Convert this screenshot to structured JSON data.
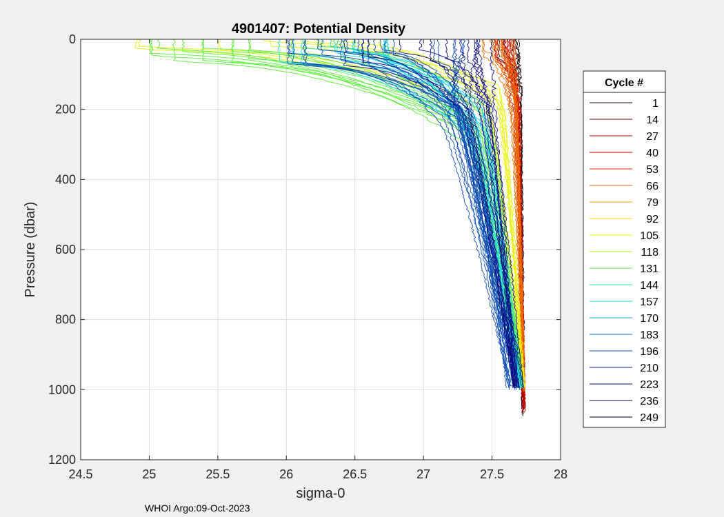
{
  "chart_data": {
    "type": "line",
    "title": "4901407: Potential Density",
    "xlabel": "sigma-0",
    "ylabel": "Pressure (dbar)",
    "xlim": [
      24.5,
      28
    ],
    "ylim": [
      0,
      1200
    ],
    "y_reversed": true,
    "grid": true,
    "x_ticks": [
      24.5,
      25,
      25.5,
      26,
      26.5,
      27,
      27.5,
      28
    ],
    "x_tick_labels": [
      "24.5",
      "25",
      "25.5",
      "26",
      "26.5",
      "27",
      "27.5",
      "28"
    ],
    "y_ticks": [
      0,
      200,
      400,
      600,
      800,
      1000,
      1200
    ],
    "y_tick_labels": [
      "0",
      "200",
      "400",
      "600",
      "800",
      "1000",
      "1200"
    ],
    "legend": {
      "title": "Cycle #",
      "position": "right-outside",
      "entries": [
        {
          "label": "1",
          "color": "#1a0000"
        },
        {
          "label": "14",
          "color": "#6b0000"
        },
        {
          "label": "27",
          "color": "#9c0000"
        },
        {
          "label": "40",
          "color": "#c40000"
        },
        {
          "label": "53",
          "color": "#e62b00"
        },
        {
          "label": "66",
          "color": "#f06a00"
        },
        {
          "label": "79",
          "color": "#f09a00"
        },
        {
          "label": "92",
          "color": "#f5d400"
        },
        {
          "label": "105",
          "color": "#e8f000"
        },
        {
          "label": "118",
          "color": "#a8f000"
        },
        {
          "label": "131",
          "color": "#55ee33"
        },
        {
          "label": "144",
          "color": "#22e5a0"
        },
        {
          "label": "157",
          "color": "#11d8e8"
        },
        {
          "label": "170",
          "color": "#0fb0e0"
        },
        {
          "label": "183",
          "color": "#0a78c8"
        },
        {
          "label": "196",
          "color": "#0a4ab0"
        },
        {
          "label": "210",
          "color": "#0a1fa0"
        },
        {
          "label": "223",
          "color": "#0a0a80"
        },
        {
          "label": "236",
          "color": "#060652"
        },
        {
          "label": "249",
          "color": "#02022a"
        }
      ]
    },
    "series_groups": [
      {
        "cycles": "1-13",
        "color": "#1a0000",
        "mixed_layer": [
          27.55,
          27.72
        ],
        "ml_depth": [
          20,
          60
        ],
        "thermo_depth": 120,
        "sigma_mid": [
          27.68,
          27.72
        ],
        "sigma_bottom": [
          27.72,
          27.74
        ],
        "max_depth": [
          1040,
          1090
        ],
        "count": 6
      },
      {
        "cycles": "14-40",
        "color": "#c40000",
        "mixed_layer": [
          27.45,
          27.68
        ],
        "ml_depth": [
          20,
          80
        ],
        "thermo_depth": 130,
        "sigma_mid": [
          27.66,
          27.71
        ],
        "sigma_bottom": [
          27.72,
          27.74
        ],
        "max_depth": [
          1000,
          1080
        ],
        "count": 12
      },
      {
        "cycles": "53-79",
        "color": "#f06a00",
        "mixed_layer": [
          27.4,
          27.7
        ],
        "ml_depth": [
          10,
          70
        ],
        "thermo_depth": 150,
        "sigma_mid": [
          27.64,
          27.71
        ],
        "sigma_bottom": [
          27.72,
          27.74
        ],
        "max_depth": [
          990,
          1010
        ],
        "count": 12
      },
      {
        "cycles": "92-105",
        "color": "#e8f000",
        "mixed_layer": [
          24.75,
          27.3
        ],
        "ml_depth": [
          5,
          40
        ],
        "thermo_depth": 150,
        "sigma_mid": [
          27.6,
          27.7
        ],
        "sigma_bottom": [
          27.72,
          27.74
        ],
        "max_depth": [
          990,
          1000
        ],
        "count": 10
      },
      {
        "cycles": "118-131",
        "color": "#55ee33",
        "mixed_layer": [
          25.0,
          26.3
        ],
        "ml_depth": [
          20,
          70
        ],
        "thermo_depth": 200,
        "sigma_mid": [
          27.45,
          27.62
        ],
        "sigma_bottom": [
          27.7,
          27.73
        ],
        "max_depth": [
          990,
          1000
        ],
        "count": 14
      },
      {
        "cycles": "144-170",
        "color": "#11d8e8",
        "mixed_layer": [
          25.9,
          27.0
        ],
        "ml_depth": [
          20,
          70
        ],
        "thermo_depth": 180,
        "sigma_mid": [
          27.35,
          27.55
        ],
        "sigma_bottom": [
          27.68,
          27.73
        ],
        "max_depth": [
          990,
          1000
        ],
        "count": 16
      },
      {
        "cycles": "183-210",
        "color": "#0a4ab0",
        "mixed_layer": [
          26.0,
          27.3
        ],
        "ml_depth": [
          20,
          80
        ],
        "thermo_depth": 150,
        "sigma_mid": [
          27.15,
          27.45
        ],
        "sigma_bottom": [
          27.6,
          27.72
        ],
        "max_depth": [
          990,
          1005
        ],
        "count": 22
      },
      {
        "cycles": "223-249",
        "color": "#0a0a80",
        "mixed_layer": [
          26.3,
          27.5
        ],
        "ml_depth": [
          20,
          90
        ],
        "thermo_depth": 140,
        "sigma_mid": [
          27.3,
          27.55
        ],
        "sigma_bottom": [
          27.65,
          27.73
        ],
        "max_depth": [
          990,
          1000
        ],
        "count": 14
      }
    ],
    "footnote": "WHOI Argo:09-Oct-2023"
  }
}
